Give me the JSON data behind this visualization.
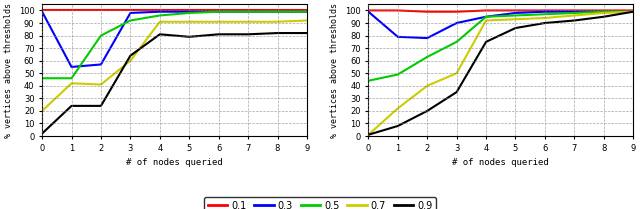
{
  "left": {
    "x": [
      0,
      1,
      2,
      3,
      4,
      5,
      6,
      7,
      8,
      9
    ],
    "lines": {
      "0.1": [
        100,
        100,
        100,
        100,
        100,
        100,
        100,
        100,
        100,
        100
      ],
      "0.3": [
        99,
        55,
        57,
        98,
        99,
        99,
        99,
        99,
        99,
        99
      ],
      "0.5": [
        46,
        46,
        80,
        92,
        96,
        98,
        99,
        99,
        99,
        99
      ],
      "0.7": [
        20,
        42,
        41,
        60,
        91,
        91,
        91,
        91,
        91,
        92
      ],
      "0.9": [
        2,
        24,
        24,
        64,
        81,
        79,
        81,
        81,
        82,
        82
      ]
    }
  },
  "right": {
    "x": [
      0,
      1,
      2,
      3,
      4,
      5,
      6,
      7,
      8,
      9
    ],
    "lines": {
      "0.1": [
        100,
        100,
        99,
        99,
        100,
        100,
        100,
        100,
        100,
        100
      ],
      "0.3": [
        99,
        79,
        78,
        90,
        95,
        98,
        99,
        99,
        99,
        99
      ],
      "0.5": [
        44,
        49,
        63,
        75,
        95,
        96,
        97,
        98,
        99,
        99
      ],
      "0.7": [
        1,
        22,
        40,
        50,
        92,
        93,
        94,
        96,
        98,
        99
      ],
      "0.9": [
        1,
        8,
        20,
        35,
        75,
        86,
        90,
        92,
        95,
        99
      ]
    }
  },
  "colors": {
    "0.1": "#ff0000",
    "0.3": "#0000ff",
    "0.5": "#00cc00",
    "0.7": "#cccc00",
    "0.9": "#000000"
  },
  "xlabel": "# of nodes queried",
  "ylabel": "% vertices above thresholds",
  "ylim": [
    0,
    105
  ],
  "xlim": [
    0,
    9
  ],
  "yticks": [
    0,
    10,
    20,
    30,
    40,
    50,
    60,
    70,
    80,
    90,
    100
  ],
  "xticks": [
    0,
    1,
    2,
    3,
    4,
    5,
    6,
    7,
    8,
    9
  ],
  "legend_labels": [
    "0.1",
    "0.3",
    "0.5",
    "0.7",
    "0.9"
  ],
  "background_color": "#ffffff"
}
